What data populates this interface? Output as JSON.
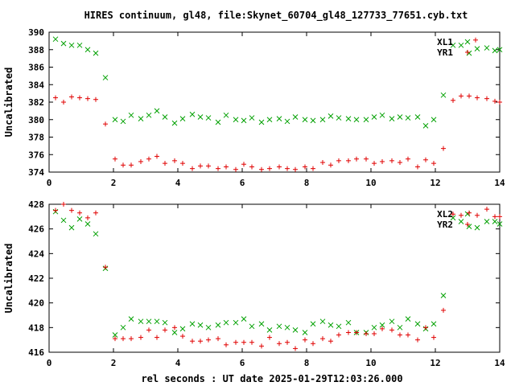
{
  "title": "HIRES continuum, gl48, file:Skynet_60704_gl48_127733_77651.cyb.txt",
  "xlabel": "rel seconds : UT date 2025-01-29T12:03:26.000",
  "colors": {
    "red": "#e00000",
    "green": "#00a000"
  },
  "chart_data": [
    {
      "type": "scatter",
      "ylabel": "Uncalibrated",
      "xlim": [
        0,
        14
      ],
      "ylim": [
        374,
        390
      ],
      "xticks": [
        "0",
        "2",
        "4",
        "6",
        "8",
        "10",
        "12",
        "14"
      ],
      "yticks": [
        "374",
        "376",
        "378",
        "380",
        "382",
        "384",
        "386",
        "388",
        "390"
      ],
      "series": [
        {
          "name": "XL1",
          "marker": "x",
          "color": "#00a000",
          "x": [
            0.2,
            0.45,
            0.7,
            0.95,
            1.2,
            1.45,
            1.75,
            2.05,
            2.3,
            2.55,
            2.85,
            3.1,
            3.35,
            3.6,
            3.9,
            4.15,
            4.45,
            4.7,
            4.95,
            5.25,
            5.5,
            5.8,
            6.05,
            6.3,
            6.6,
            6.85,
            7.15,
            7.4,
            7.65,
            7.95,
            8.2,
            8.5,
            8.75,
            9.0,
            9.3,
            9.55,
            9.85,
            10.1,
            10.35,
            10.65,
            10.9,
            11.15,
            11.45,
            11.7,
            11.95,
            12.25,
            12.55,
            12.8,
            13.05,
            13.3,
            13.6,
            13.85,
            14.0
          ],
          "y": [
            389.2,
            388.7,
            388.5,
            388.5,
            388.0,
            387.6,
            384.8,
            380.0,
            379.8,
            380.5,
            380.1,
            380.5,
            381.0,
            380.3,
            379.6,
            380.1,
            380.6,
            380.3,
            380.2,
            379.7,
            380.5,
            380.0,
            379.9,
            380.2,
            379.7,
            380.0,
            380.1,
            379.8,
            380.3,
            380.0,
            379.9,
            380.0,
            380.4,
            380.2,
            380.1,
            380.0,
            380.0,
            380.3,
            380.5,
            380.1,
            380.3,
            380.2,
            380.3,
            379.3,
            380.0,
            382.8,
            388.5,
            388.5,
            387.6,
            388.1,
            388.2,
            387.9,
            388.0
          ]
        },
        {
          "name": "YR1",
          "marker": "+",
          "color": "#e00000",
          "x": [
            0.2,
            0.45,
            0.7,
            0.95,
            1.2,
            1.45,
            1.75,
            2.05,
            2.3,
            2.55,
            2.85,
            3.1,
            3.35,
            3.6,
            3.9,
            4.15,
            4.45,
            4.7,
            4.95,
            5.25,
            5.5,
            5.8,
            6.05,
            6.3,
            6.6,
            6.85,
            7.15,
            7.4,
            7.65,
            7.95,
            8.2,
            8.5,
            8.75,
            9.0,
            9.3,
            9.55,
            9.85,
            10.1,
            10.35,
            10.65,
            10.9,
            11.15,
            11.45,
            11.7,
            11.95,
            12.25,
            12.55,
            12.8,
            13.05,
            13.3,
            13.6,
            13.85,
            14.0
          ],
          "y": [
            382.5,
            382.0,
            382.6,
            382.5,
            382.4,
            382.3,
            379.5,
            375.5,
            374.8,
            374.8,
            375.2,
            375.5,
            375.8,
            375.0,
            375.3,
            375.0,
            374.4,
            374.7,
            374.7,
            374.4,
            374.6,
            374.3,
            374.9,
            374.6,
            374.3,
            374.4,
            374.6,
            374.4,
            374.3,
            374.6,
            374.4,
            375.1,
            374.8,
            375.3,
            375.3,
            375.5,
            375.5,
            375.0,
            375.2,
            375.3,
            375.1,
            375.5,
            374.6,
            375.4,
            375.0,
            376.7,
            382.2,
            382.7,
            382.7,
            382.5,
            382.4,
            382.1,
            382.0
          ]
        },
        {
          "name": "",
          "marker": "+",
          "color": "#e00000",
          "x": [
            13.25
          ],
          "y": [
            389.1
          ]
        }
      ]
    },
    {
      "type": "scatter",
      "ylabel": "Uncalibrated",
      "xlim": [
        0,
        14
      ],
      "ylim": [
        416,
        428
      ],
      "xticks": [
        "0",
        "2",
        "4",
        "6",
        "8",
        "10",
        "12",
        "14"
      ],
      "yticks": [
        "416",
        "418",
        "420",
        "422",
        "424",
        "426",
        "428"
      ],
      "series": [
        {
          "name": "XL2",
          "marker": "x",
          "color": "#00a000",
          "x": [
            0.2,
            0.45,
            0.7,
            0.95,
            1.2,
            1.45,
            1.75,
            2.05,
            2.3,
            2.55,
            2.85,
            3.1,
            3.35,
            3.6,
            3.9,
            4.15,
            4.45,
            4.7,
            4.95,
            5.25,
            5.5,
            5.8,
            6.05,
            6.3,
            6.6,
            6.85,
            7.15,
            7.4,
            7.65,
            7.95,
            8.2,
            8.5,
            8.75,
            9.0,
            9.3,
            9.55,
            9.85,
            10.1,
            10.35,
            10.65,
            10.9,
            11.15,
            11.45,
            11.7,
            11.95,
            12.25,
            12.55,
            12.8,
            13.05,
            13.3,
            13.6,
            13.85,
            14.0
          ],
          "y": [
            427.4,
            426.7,
            426.1,
            426.8,
            426.4,
            425.6,
            422.8,
            417.4,
            418.0,
            418.7,
            418.5,
            418.5,
            418.5,
            418.4,
            417.6,
            417.9,
            418.3,
            418.2,
            418.0,
            418.2,
            418.4,
            418.4,
            418.7,
            418.1,
            418.3,
            417.8,
            418.1,
            418.0,
            417.8,
            417.6,
            418.3,
            418.5,
            418.2,
            418.1,
            418.4,
            417.6,
            417.6,
            418.0,
            418.2,
            418.5,
            418.0,
            418.7,
            418.3,
            417.9,
            418.3,
            420.6,
            426.9,
            426.6,
            426.2,
            426.1,
            426.6,
            426.6,
            426.4
          ]
        },
        {
          "name": "YR2",
          "marker": "+",
          "color": "#e00000",
          "x": [
            0.2,
            0.45,
            0.7,
            0.95,
            1.2,
            1.45,
            1.75,
            2.05,
            2.3,
            2.55,
            2.85,
            3.1,
            3.35,
            3.6,
            3.9,
            4.15,
            4.45,
            4.7,
            4.95,
            5.25,
            5.5,
            5.8,
            6.05,
            6.3,
            6.6,
            6.85,
            7.15,
            7.4,
            7.65,
            7.95,
            8.2,
            8.5,
            8.75,
            9.0,
            9.3,
            9.55,
            9.85,
            10.1,
            10.35,
            10.65,
            10.9,
            11.15,
            11.45,
            11.7,
            11.95,
            12.25,
            12.55,
            12.8,
            13.05,
            13.3,
            13.6,
            13.85,
            14.0
          ],
          "y": [
            427.5,
            428.0,
            427.5,
            427.3,
            426.9,
            427.3,
            422.9,
            417.1,
            417.1,
            417.1,
            417.2,
            417.8,
            417.2,
            417.8,
            418.0,
            417.3,
            416.9,
            416.9,
            417.0,
            417.1,
            416.6,
            416.8,
            416.8,
            416.8,
            416.5,
            417.2,
            416.7,
            416.8,
            416.3,
            417.0,
            416.7,
            417.1,
            416.9,
            417.4,
            417.6,
            417.6,
            417.5,
            417.5,
            417.9,
            417.8,
            417.4,
            417.4,
            417.0,
            418.0,
            417.2,
            419.4,
            427.2,
            427.1,
            427.3,
            427.1,
            427.6,
            427.0,
            427.0
          ]
        }
      ]
    }
  ]
}
